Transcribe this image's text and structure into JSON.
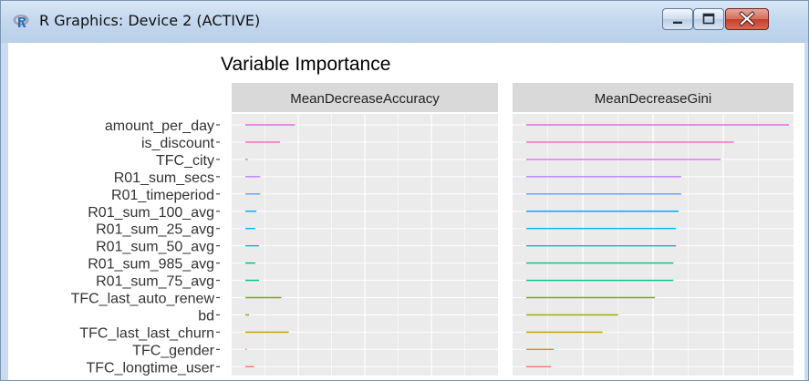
{
  "window": {
    "title": "R Graphics: Device 2 (ACTIVE)",
    "icon": "r-logo-icon",
    "controls": {
      "minimize": "minimize-icon",
      "maximize": "maximize-icon",
      "close": "close-icon"
    }
  },
  "chart_data": {
    "type": "bar",
    "title": "Variable Importance",
    "panel_bg": "#ebebeb",
    "strip_bg": "#d9d9d9",
    "categories": [
      "amount_per_day",
      "is_discount",
      "TFC_city",
      "R01_sum_secs",
      "R01_timeperiod",
      "R01_sum_100_avg",
      "R01_sum_25_avg",
      "R01_sum_50_avg",
      "R01_sum_985_avg",
      "R01_sum_75_avg",
      "TFC_last_auto_renew",
      "bd",
      "TFC_last_last_churn",
      "TFC_gender",
      "TFC_longtime_user"
    ],
    "colors": [
      "#f465e3",
      "#ff62bc",
      "#e76bf3",
      "#b983ff",
      "#619cff",
      "#00a9ff",
      "#00b8e7",
      "#00c0b8",
      "#00bf7d",
      "#00c08b",
      "#7cae00",
      "#a3a500",
      "#c49a00",
      "#e68613",
      "#f8766d"
    ],
    "xlim": [
      0,
      1
    ],
    "series": [
      {
        "name": "MeanDecreaseAccuracy",
        "values": [
          0.2,
          0.14,
          0.01,
          0.06,
          0.06,
          0.045,
          0.04,
          0.055,
          0.04,
          0.055,
          0.145,
          0.015,
          0.175,
          0.005,
          0.035
        ]
      },
      {
        "name": "MeanDecreaseGini",
        "values": [
          1.0,
          0.79,
          0.74,
          0.59,
          0.59,
          0.58,
          0.57,
          0.57,
          0.56,
          0.56,
          0.49,
          0.35,
          0.29,
          0.105,
          0.095
        ]
      }
    ]
  }
}
